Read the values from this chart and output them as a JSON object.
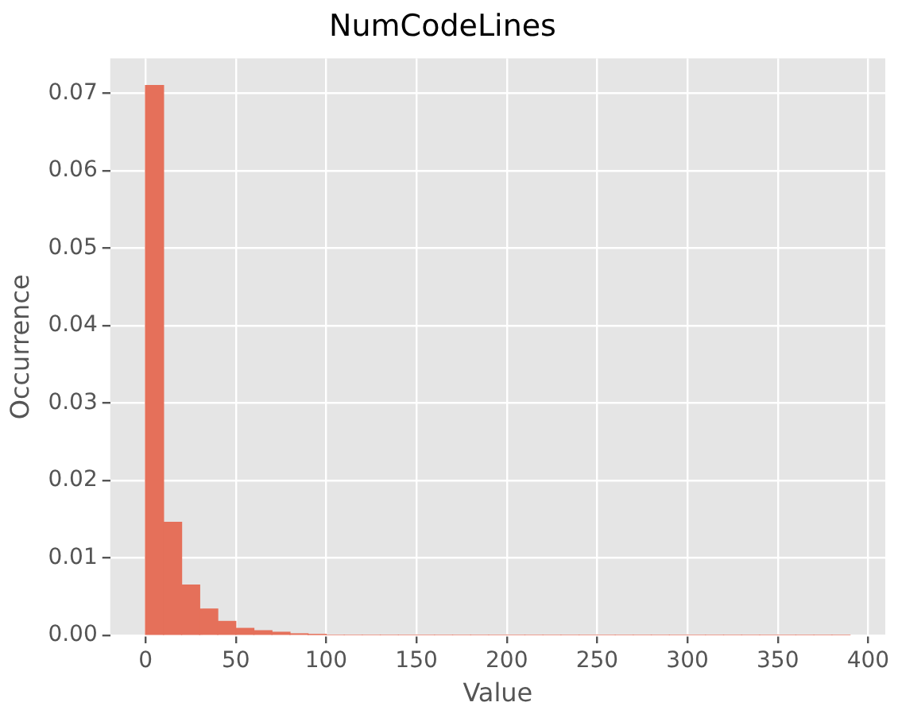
{
  "chart_data": {
    "type": "histogram",
    "title": "NumCodeLines",
    "xlabel": "Value",
    "ylabel": "Occurrence",
    "bins": [
      0,
      10,
      20,
      30,
      40,
      50,
      60,
      70,
      80,
      90,
      100,
      110,
      120,
      130,
      140,
      150,
      160,
      170,
      180,
      190,
      200,
      210,
      220,
      230,
      240,
      250,
      260,
      270,
      280,
      290,
      300,
      310,
      320,
      330,
      340,
      350,
      360,
      370,
      380,
      390
    ],
    "values": [
      0.071,
      0.0146,
      0.0065,
      0.0034,
      0.0018,
      0.0009,
      0.0006,
      0.0004,
      0.0002,
      0.0001,
      0,
      0,
      0,
      0,
      0,
      0,
      0,
      0,
      0,
      0,
      0,
      0,
      0,
      0,
      0,
      0,
      0,
      0,
      0,
      0,
      0,
      0,
      0,
      0,
      0,
      0,
      0,
      0,
      0
    ],
    "color": "#e5705a",
    "xlim": [
      -19.5,
      409.5
    ],
    "xticks": [
      0,
      50,
      100,
      150,
      200,
      250,
      300,
      350,
      400
    ],
    "ylim": [
      0,
      0.0745
    ],
    "yticks": [
      {
        "value": 0,
        "label": "0.00"
      },
      {
        "value": 0.01,
        "label": "0.01"
      },
      {
        "value": 0.02,
        "label": "0.02"
      },
      {
        "value": 0.03,
        "label": "0.03"
      },
      {
        "value": 0.04,
        "label": "0.04"
      },
      {
        "value": 0.05,
        "label": "0.05"
      },
      {
        "value": 0.06,
        "label": "0.06"
      },
      {
        "value": 0.07,
        "label": "0.07"
      }
    ],
    "grid": true
  }
}
